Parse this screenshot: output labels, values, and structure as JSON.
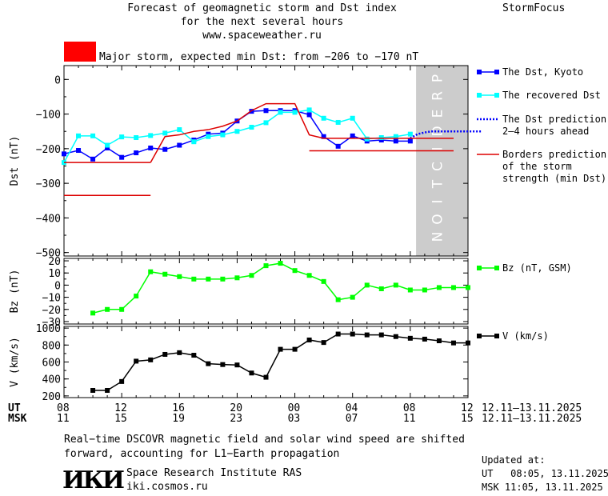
{
  "header": {
    "title_line1": "Forecast of geomagnetic storm and Dst index",
    "title_line2": "for the next several hours",
    "title_line3": "www.spaceweather.ru",
    "brand": "StormFocus",
    "storm_label": "Major storm, expected min Dst: from −206 to −170 nT",
    "storm_color": "#ff0000"
  },
  "chart_data": [
    {
      "type": "line",
      "ylabel": "Dst (nT)",
      "ylim": [
        -510,
        40
      ],
      "yticks": [
        0,
        -100,
        -200,
        -300,
        -400,
        -500
      ],
      "ytick_labels": [
        "0",
        "−100",
        "−200",
        "−300",
        "−400",
        "−500"
      ],
      "prediction_label": "PREDICTION",
      "prediction_start": 12.2,
      "series": [
        {
          "name": "The Dst, Kyoto",
          "color": "#0000ff",
          "marker": "square",
          "x": [
            0,
            0.5,
            1,
            1.5,
            2,
            2.5,
            3,
            3.5,
            4,
            4.5,
            5,
            5.5,
            6,
            6.5,
            7,
            7.5,
            8,
            8.5,
            9,
            9.5,
            10,
            10.5,
            11,
            11.5,
            12
          ],
          "y": [
            -215,
            -205,
            -230,
            -198,
            -225,
            -212,
            -198,
            -202,
            -190,
            -175,
            -158,
            -155,
            -120,
            -92,
            -90,
            -90,
            -90,
            -102,
            -165,
            -193,
            -163,
            -178,
            -175,
            -178,
            -178
          ]
        },
        {
          "name": "The recovered Dst",
          "color": "#00ffff",
          "marker": "square",
          "x": [
            0,
            0.5,
            1,
            1.5,
            2,
            2.5,
            3,
            3.5,
            4,
            4.5,
            5,
            5.5,
            6,
            6.5,
            7,
            7.5,
            8,
            8.5,
            9,
            9.5,
            10,
            10.5,
            11,
            11.5,
            12
          ],
          "y": [
            -240,
            -163,
            -163,
            -190,
            -166,
            -168,
            -162,
            -155,
            -145,
            -180,
            -165,
            -160,
            -150,
            -138,
            -125,
            -95,
            -95,
            -88,
            -112,
            -124,
            -112,
            -172,
            -168,
            -165,
            -158
          ]
        },
        {
          "name": "The Dst prediction 2–4 hours ahead",
          "color": "#0000ff",
          "marker": "none",
          "dotted": true,
          "x": [
            12,
            12.25,
            12.5,
            12.75,
            13,
            13.25,
            13.5,
            13.75,
            14,
            14.25,
            14.5
          ],
          "y": [
            -170,
            -158,
            -153,
            -150,
            -150,
            -150,
            -150,
            -150,
            -150,
            -150,
            -150
          ]
        },
        {
          "name": "Borders prediction of the storm strength (min Dst)",
          "color": "#dd0000",
          "marker": "none",
          "segments": [
            {
              "x": [
                0,
                3
              ],
              "y": [
                -240,
                -240
              ]
            },
            {
              "x": [
                3,
                3.5,
                4,
                4.5,
                5,
                5.5,
                6,
                6.5,
                7,
                7.5,
                8,
                8.5,
                9,
                13.5
              ],
              "y": [
                -240,
                -165,
                -160,
                -150,
                -145,
                -135,
                -120,
                -90,
                -70,
                -70,
                -70,
                -160,
                -170,
                -170
              ]
            },
            {
              "x": [
                0,
                3
              ],
              "y": [
                -335,
                -335
              ]
            },
            {
              "x": [
                8.5,
                13.5
              ],
              "y": [
                -206,
                -206
              ]
            }
          ]
        }
      ]
    },
    {
      "type": "line",
      "ylabel": "Bz (nT)",
      "ylim": [
        -32,
        22
      ],
      "yticks": [
        20,
        10,
        0,
        -10,
        -20,
        -30
      ],
      "ytick_labels": [
        "20",
        "10",
        "0",
        "−10",
        "−20",
        "−30"
      ],
      "series": [
        {
          "name": "Bz (nT, GSM)",
          "color": "#00ff00",
          "marker": "square",
          "x": [
            1,
            1.5,
            2,
            2.5,
            3,
            3.5,
            4,
            4.5,
            5,
            5.5,
            6,
            6.5,
            7,
            7.5,
            8,
            8.5,
            9,
            9.5,
            10,
            10.5,
            11,
            11.5,
            12,
            12.5,
            13,
            13.5,
            14
          ],
          "y": [
            -23,
            -20,
            -20,
            -9,
            11,
            9,
            7,
            5,
            5,
            5,
            6,
            8,
            16,
            18,
            12,
            8,
            3,
            -12,
            -10,
            0,
            -3,
            0,
            -4,
            -4,
            -2,
            -2,
            -2
          ]
        }
      ]
    },
    {
      "type": "line",
      "ylabel": "V (km/s)",
      "ylim": [
        180,
        1020
      ],
      "yticks": [
        200,
        400,
        600,
        800,
        1000
      ],
      "ytick_labels": [
        "200",
        "400",
        "600",
        "800",
        "1000"
      ],
      "series": [
        {
          "name": "V (km/s)",
          "color": "#000000",
          "marker": "square",
          "x": [
            1,
            1.5,
            2,
            2.5,
            3,
            3.5,
            4,
            4.5,
            5,
            5.5,
            6,
            6.5,
            7,
            7.5,
            8,
            8.5,
            9,
            9.5,
            10,
            10.5,
            11,
            11.5,
            12,
            12.5,
            13,
            13.5,
            14
          ],
          "y": [
            265,
            265,
            370,
            610,
            625,
            690,
            710,
            680,
            580,
            570,
            565,
            470,
            420,
            750,
            750,
            860,
            830,
            930,
            930,
            920,
            920,
            900,
            880,
            870,
            850,
            825,
            825
          ]
        }
      ]
    }
  ],
  "time_axis": {
    "ut_label": "UT",
    "msk_label": "MSK",
    "ut_ticks": [
      "08",
      "12",
      "16",
      "20",
      "00",
      "04",
      "08",
      "12"
    ],
    "msk_ticks": [
      "11",
      "15",
      "19",
      "23",
      "03",
      "07",
      "11",
      "15"
    ],
    "ut_range": "12.11–13.11.2025",
    "msk_range": "12.11–13.11.2025"
  },
  "legend": {
    "kyoto": "The Dst, Kyoto",
    "recovered": "The recovered Dst",
    "prediction": "The Dst prediction\n2–4 hours ahead",
    "borders": "Borders prediction\nof the storm\nstrength (min Dst)",
    "bz": "Bz (nT, GSM)",
    "v": "V (km/s)"
  },
  "footer": {
    "note": "Real−time DSCOVR magnetic field and solar wind speed are shifted\nforward, accounting for L1−Earth propagation",
    "institute": "Space Research Institute RAS",
    "site": "iki.cosmos.ru",
    "logo_text": "ИКИ",
    "updated_label": "Updated at:",
    "updated_ut": "UT   08:05, 13.11.2025",
    "updated_msk": "MSK 11:05, 13.11.2025"
  }
}
